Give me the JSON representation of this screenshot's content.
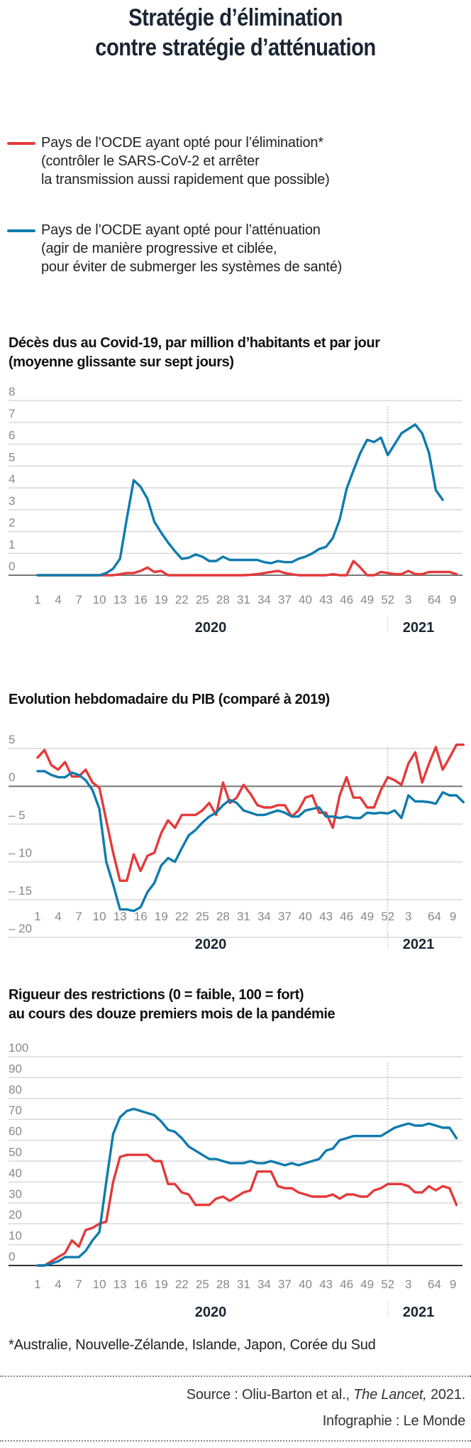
{
  "title": "Stratégie d’élimination\ncontre stratégie d’atténuation",
  "title_lines": [
    "Stratégie d’élimination",
    "contre stratégie d’atténuation"
  ],
  "colors": {
    "elimination": "#e5393a",
    "attenuation": "#0f7bae",
    "grid": "#d9d9d9",
    "axis": "#555555",
    "text": "#1b2633",
    "tick": "#777777"
  },
  "legend": [
    {
      "series": "elimination",
      "text": "Pays de l’OCDE ayant opté pour l’élimination*\n(contrôler le SARS-CoV-2 et arrêter\nla transmission aussi rapidement que possible)"
    },
    {
      "series": "attenuation",
      "text": "Pays de l’OCDE ayant opté pour l’atténuation\n(agir de manière progressive et ciblée,\npour éviter de submerger les systèmes de santé)"
    }
  ],
  "x_axis": {
    "tick_labels": [
      "1",
      "4",
      "7",
      "10",
      "13",
      "16",
      "19",
      "22",
      "25",
      "28",
      "31",
      "34",
      "37",
      "40",
      "43",
      "46",
      "49",
      "52",
      "3",
      "64",
      "9"
    ],
    "year_labels": [
      "2020",
      "2021"
    ]
  },
  "chart_data": [
    {
      "type": "line",
      "title": "Décès dus au Covid-19, par million d’habitants et par jour\n(moyenne glissante sur sept jours)",
      "xlabel": "",
      "ylabel": "",
      "ylim": [
        0,
        8
      ],
      "yticks": [
        "0",
        "1",
        "2",
        "3",
        "4",
        "5",
        "6",
        "7",
        "8"
      ],
      "grid": true,
      "series": [
        {
          "name": "Pays de l’OCDE ayant opté pour l’élimination",
          "key": "elimination",
          "values": [
            0,
            0,
            0,
            0,
            0,
            0,
            0,
            0,
            0,
            0,
            0,
            0,
            0.05,
            0.1,
            0.1,
            0.2,
            0.35,
            0.15,
            0.2,
            0,
            0,
            0,
            0,
            0,
            0,
            0,
            0,
            0,
            0,
            0,
            0,
            0.02,
            0.05,
            0.1,
            0.15,
            0.2,
            0.1,
            0.05,
            0,
            0,
            0,
            0,
            0,
            0.05,
            0,
            0,
            0.65,
            0.35,
            0,
            0,
            0.15,
            0.1,
            0.05,
            0.05,
            0.2,
            0.05,
            0.05,
            0.15,
            0.15,
            0.15,
            0.15,
            0.05
          ]
        },
        {
          "name": "Pays de l’OCDE ayant opté pour l’atténuation",
          "key": "attenuation",
          "values": [
            0,
            0,
            0,
            0,
            0,
            0,
            0,
            0,
            0,
            0,
            0.1,
            0.3,
            0.75,
            2.6,
            4.35,
            4.05,
            3.5,
            2.45,
            1.95,
            1.5,
            1.1,
            0.75,
            0.8,
            0.95,
            0.85,
            0.65,
            0.65,
            0.85,
            0.7,
            0.7,
            0.7,
            0.7,
            0.7,
            0.6,
            0.55,
            0.65,
            0.6,
            0.6,
            0.75,
            0.85,
            1.0,
            1.2,
            1.3,
            1.7,
            2.55,
            3.95,
            4.8,
            5.6,
            6.2,
            6.1,
            6.3,
            5.5,
            6.0,
            6.5,
            6.7,
            6.9,
            6.5,
            5.6,
            3.9,
            3.45
          ]
        }
      ]
    },
    {
      "type": "line",
      "title": "Evolution hebdomadaire du PIB (comparé à 2019)",
      "xlabel": "",
      "ylabel": "",
      "ylim": [
        -22,
        7
      ],
      "yticks": [
        "5",
        "0",
        "– 5",
        "– 10",
        "– 15",
        "– 20"
      ],
      "ytick_values": [
        5,
        0,
        -5,
        -10,
        -15,
        -20
      ],
      "grid": true,
      "series": [
        {
          "name": "Pays de l’OCDE ayant opté pour l’élimination",
          "key": "elimination",
          "values": [
            3.8,
            4.8,
            2.8,
            2.2,
            3.2,
            1.3,
            1.3,
            2.2,
            0.5,
            -0.2,
            -4.5,
            -8.8,
            -12.5,
            -12.5,
            -9.0,
            -11.2,
            -9.2,
            -8.8,
            -6.2,
            -4.5,
            -5.5,
            -3.8,
            -3.8,
            -3.8,
            -3.2,
            -2.2,
            -3.8,
            0.5,
            -2.2,
            -1.5,
            0.2,
            -1.0,
            -2.5,
            -2.8,
            -2.8,
            -2.5,
            -2.5,
            -4.0,
            -3.2,
            -1.5,
            -1.2,
            -3.5,
            -3.5,
            -5.5,
            -1.2,
            1.2,
            -1.5,
            -1.5,
            -2.8,
            -2.8,
            -0.5,
            1.2,
            0.8,
            0.2,
            3.0,
            4.5,
            0.5,
            3.0,
            5.2,
            2.2,
            3.8,
            5.5,
            5.5
          ]
        },
        {
          "name": "Pays de l’OCDE ayant opté pour l’atténuation",
          "key": "attenuation",
          "values": [
            2.0,
            2.0,
            1.5,
            1.2,
            1.2,
            1.8,
            1.5,
            0.8,
            -0.5,
            -3.0,
            -10.0,
            -13.0,
            -16.3,
            -16.3,
            -16.5,
            -16.0,
            -14.0,
            -12.8,
            -10.5,
            -9.5,
            -10.0,
            -8.2,
            -6.5,
            -5.8,
            -4.8,
            -4.0,
            -3.5,
            -2.5,
            -1.8,
            -2.2,
            -3.2,
            -3.5,
            -3.8,
            -3.8,
            -3.5,
            -3.2,
            -3.5,
            -4.0,
            -4.0,
            -3.2,
            -3.0,
            -2.8,
            -4.0,
            -4.0,
            -4.2,
            -4.0,
            -4.2,
            -4.2,
            -3.5,
            -3.6,
            -3.5,
            -3.6,
            -3.2,
            -4.2,
            -1.2,
            -2.0,
            -2.0,
            -2.1,
            -2.3,
            -0.8,
            -1.2,
            -1.2,
            -2.1
          ]
        }
      ]
    },
    {
      "type": "line",
      "title": "Rigueur des restrictions (0 = faible, 100 = fort)\nau cours des douze premiers mois de la pandémie",
      "xlabel": "",
      "ylabel": "",
      "ylim": [
        0,
        100
      ],
      "yticks": [
        "0",
        "10",
        "20",
        "30",
        "40",
        "50",
        "60",
        "70",
        "80",
        "90",
        "100"
      ],
      "grid": true,
      "series": [
        {
          "name": "Pays de l’OCDE ayant opté pour l’élimination",
          "key": "elimination",
          "values": [
            0,
            0,
            2,
            4,
            6,
            12,
            9,
            17,
            18,
            20,
            21,
            40,
            52,
            53,
            53,
            53,
            53,
            50,
            50,
            39,
            39,
            35,
            34,
            29,
            29,
            29,
            32,
            33,
            31,
            33,
            35,
            36,
            45,
            45,
            45,
            38,
            37,
            37,
            35,
            34,
            33,
            33,
            33,
            34,
            32,
            34,
            34,
            33,
            33,
            36,
            37,
            39,
            39,
            39,
            38,
            35,
            35,
            38,
            36,
            38,
            37,
            29
          ]
        },
        {
          "name": "Pays de l’OCDE ayant opté pour l’atténuation",
          "key": "attenuation",
          "values": [
            0,
            0,
            1,
            2,
            4,
            4,
            4,
            7,
            12,
            16,
            40,
            63,
            71,
            74,
            75,
            74,
            73,
            72,
            69,
            65,
            64,
            61,
            57,
            55,
            53,
            51,
            51,
            50,
            49,
            49,
            49,
            50,
            49,
            49,
            50,
            49,
            48,
            49,
            48,
            49,
            50,
            51,
            55,
            56,
            60,
            61,
            62,
            62,
            62,
            62,
            62,
            64,
            66,
            67,
            68,
            67,
            67,
            68,
            67,
            66,
            66,
            61
          ]
        }
      ]
    }
  ],
  "footnote": "*Australie, Nouvelle-Zélande, Islande, Japon, Corée du Sud",
  "source": {
    "prefix": "Source : Oliu-Barton et al., ",
    "journal": "The Lancet,",
    "suffix": " 2021."
  },
  "credit": "Infographie : Le Monde"
}
